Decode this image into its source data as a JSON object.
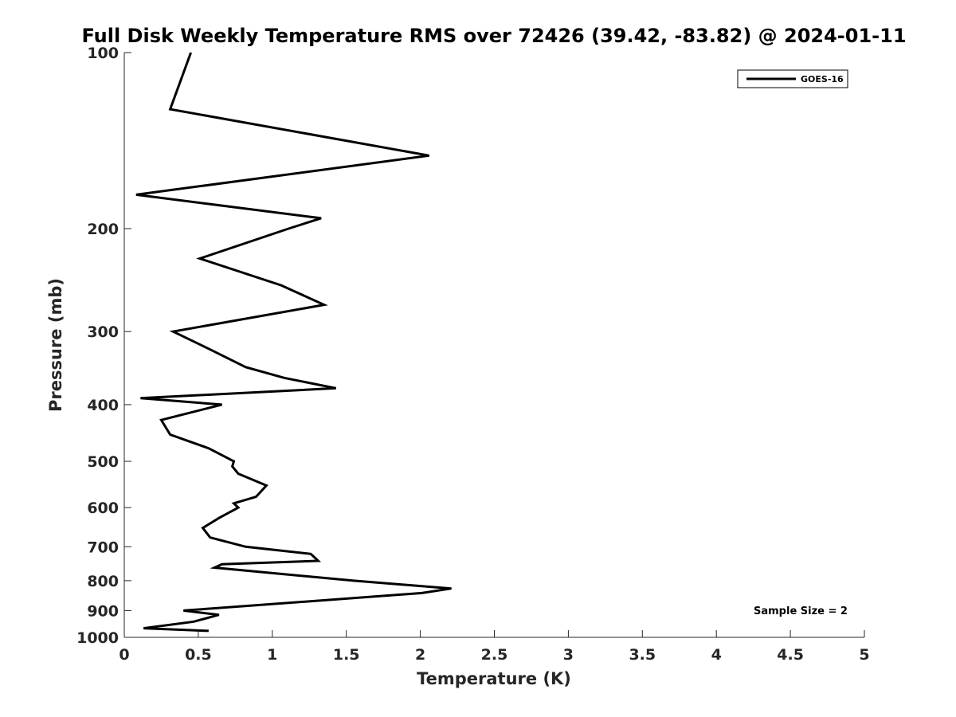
{
  "chart_data": {
    "type": "line",
    "title": "Full Disk Weekly Temperature RMS over 72426 (39.42, -83.82) @ 2024-01-11",
    "xlabel": "Temperature (K)",
    "ylabel": "Pressure (mb)",
    "xlim": [
      0,
      5
    ],
    "ylim": [
      1000,
      100
    ],
    "y_scale": "log",
    "y_reversed": true,
    "x_ticks": [
      0,
      0.5,
      1,
      1.5,
      2,
      2.5,
      3,
      3.5,
      4,
      4.5,
      5
    ],
    "x_tick_labels": [
      "0",
      "0.5",
      "1",
      "1.5",
      "2",
      "2.5",
      "3",
      "3.5",
      "4",
      "4.5",
      "5"
    ],
    "y_ticks": [
      100,
      200,
      300,
      400,
      500,
      600,
      700,
      800,
      900,
      1000
    ],
    "y_tick_labels": [
      "100",
      "200",
      "300",
      "400",
      "500",
      "600",
      "700",
      "800",
      "900",
      "1000"
    ],
    "grid": false,
    "legend_position": "top-right",
    "annotation": "Sample Size = 2",
    "series": [
      {
        "name": "GOES-16",
        "color": "#000000",
        "x": [
          0.45,
          0.31,
          2.06,
          0.08,
          1.33,
          1.11,
          0.51,
          1.06,
          1.35,
          0.33,
          0.56,
          0.82,
          1.08,
          1.43,
          0.11,
          0.66,
          0.25,
          0.31,
          0.57,
          0.74,
          0.73,
          0.77,
          0.96,
          0.89,
          0.74,
          0.77,
          0.64,
          0.53,
          0.58,
          0.82,
          1.26,
          1.31,
          0.66,
          0.61,
          1.55,
          2.21,
          2.01,
          0.4,
          0.64,
          0.47,
          0.13,
          0.57
        ],
        "y": [
          100,
          125,
          150,
          175,
          192,
          200,
          225,
          250,
          270,
          300,
          320,
          345,
          360,
          375,
          390,
          400,
          425,
          450,
          475,
          500,
          510,
          525,
          550,
          575,
          590,
          600,
          625,
          650,
          675,
          700,
          720,
          740,
          750,
          760,
          800,
          825,
          840,
          900,
          915,
          940,
          965,
          975
        ]
      }
    ]
  }
}
